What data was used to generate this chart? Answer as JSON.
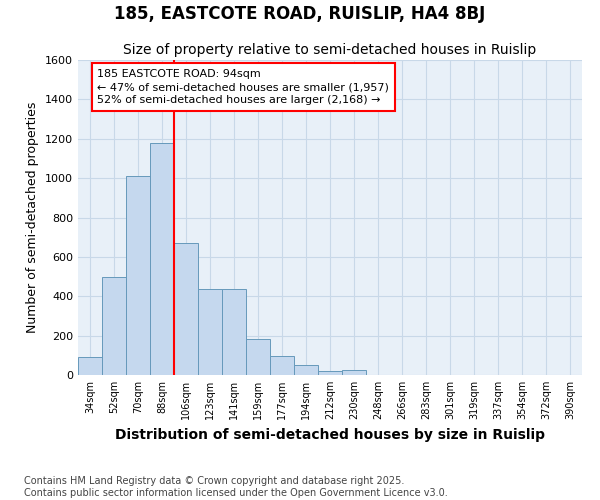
{
  "title": "185, EASTCOTE ROAD, RUISLIP, HA4 8BJ",
  "subtitle": "Size of property relative to semi-detached houses in Ruislip",
  "xlabel": "Distribution of semi-detached houses by size in Ruislip",
  "ylabel": "Number of semi-detached properties",
  "categories": [
    "34sqm",
    "52sqm",
    "70sqm",
    "88sqm",
    "106sqm",
    "123sqm",
    "141sqm",
    "159sqm",
    "177sqm",
    "194sqm",
    "212sqm",
    "230sqm",
    "248sqm",
    "266sqm",
    "283sqm",
    "301sqm",
    "319sqm",
    "337sqm",
    "354sqm",
    "372sqm",
    "390sqm"
  ],
  "values": [
    90,
    500,
    1010,
    1180,
    670,
    435,
    435,
    185,
    95,
    50,
    20,
    25,
    0,
    0,
    0,
    0,
    0,
    0,
    0,
    0,
    0
  ],
  "bar_color": "#c5d8ee",
  "bar_edge_color": "#6699bb",
  "ylim_max": 1600,
  "yticks": [
    0,
    200,
    400,
    600,
    800,
    1000,
    1200,
    1400,
    1600
  ],
  "red_line_after_bin": 3,
  "annotation_line1": "185 EASTCOTE ROAD: 94sqm",
  "annotation_line2": "← 47% of semi-detached houses are smaller (1,957)",
  "annotation_line3": "52% of semi-detached houses are larger (2,168) →",
  "footer_text": "Contains HM Land Registry data © Crown copyright and database right 2025.\nContains public sector information licensed under the Open Government Licence v3.0.",
  "fig_bg_color": "#ffffff",
  "plot_bg_color": "#e8f0f8",
  "grid_color": "#c8d8e8",
  "title_fontsize": 12,
  "subtitle_fontsize": 10,
  "annotation_fontsize": 8,
  "footer_fontsize": 7,
  "tick_fontsize": 7,
  "ylabel_fontsize": 9,
  "xlabel_fontsize": 10
}
